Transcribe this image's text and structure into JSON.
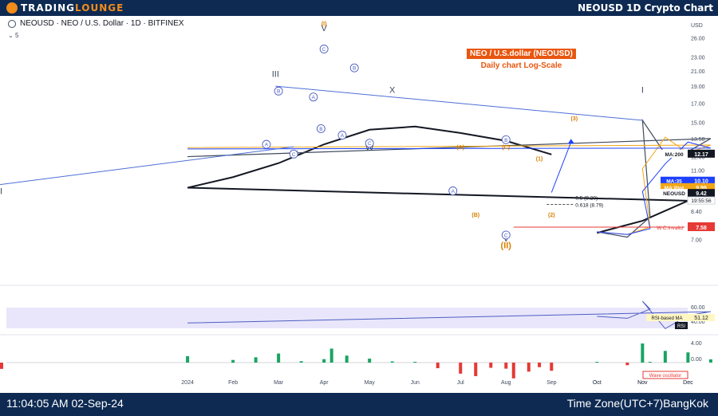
{
  "brand": {
    "name_a": "TRADING",
    "name_b": "LOUNGE"
  },
  "headline": "NEOUSD 1D Crypto Chart",
  "symbol_line": "NEOUSD · NEO / U.S. Dollar · 1D · BITFINEX",
  "indicator_count": "5",
  "footer": {
    "clock": "11:04:05 AM 02-Sep-24",
    "timezone": "Time Zone(UTC+7)BangKok"
  },
  "chart_data": {
    "type": "line",
    "title": "NEO / U.S.dollar (NEOUSD)",
    "subtitle": "Daily chart  Log-Scale",
    "y_unit": "USD",
    "y_scale": "log",
    "y_ticks": [
      26.0,
      23.0,
      21.0,
      19.0,
      17.0,
      15.0,
      13.5,
      12.0,
      11.0,
      8.4,
      7.0
    ],
    "x_ticks": [
      "Oct",
      "Nov",
      "Dec",
      "2024",
      "Feb",
      "Mar",
      "Apr",
      "May",
      "Jun",
      "Jul",
      "Aug",
      "Sep",
      "Oct",
      "Nov",
      "Dec"
    ],
    "price_path": [
      {
        "x": "Oct",
        "y": 7.35
      },
      {
        "x": "Oct-20",
        "y": 7.1
      },
      {
        "x": "Nov-05",
        "y": 8.1
      },
      {
        "x": "Nov",
        "y": 15.2
      },
      {
        "x": "Nov-15",
        "y": 12.2
      },
      {
        "x": "Dec",
        "y": 12.4
      },
      {
        "x": "Dec-15",
        "y": 13.5
      },
      {
        "x": "2024",
        "y": 12.0
      },
      {
        "x": "Jan-15",
        "y": 10.0
      },
      {
        "x": "Feb",
        "y": 11.4
      },
      {
        "x": "Feb-15",
        "y": 13.0
      },
      {
        "x": "Mar",
        "y": 15.3
      },
      {
        "x": "Mar-15",
        "y": 12.8
      },
      {
        "x": "Apr",
        "y": 14.5
      },
      {
        "x": "Apr-05",
        "y": 20.5
      },
      {
        "x": "Apr-15",
        "y": 17.0
      },
      {
        "x": "May",
        "y": 16.2
      },
      {
        "x": "May-15",
        "y": 15.0
      },
      {
        "x": "Jun",
        "y": 14.6
      },
      {
        "x": "Jun-15",
        "y": 12.0
      },
      {
        "x": "Jul",
        "y": 9.9
      },
      {
        "x": "Jul-10",
        "y": 9.0
      },
      {
        "x": "Jul-20",
        "y": 11.5
      },
      {
        "x": "Aug",
        "y": 11.0
      },
      {
        "x": "Aug-05",
        "y": 8.0
      },
      {
        "x": "Aug-15",
        "y": 9.6
      },
      {
        "x": "Aug-22",
        "y": 10.8
      },
      {
        "x": "Sep",
        "y": 9.42
      }
    ],
    "ma200_path": [
      {
        "x": "Oct",
        "y": 7.3
      },
      {
        "x": "Nov",
        "y": 7.9
      },
      {
        "x": "Dec",
        "y": 9.0
      },
      {
        "x": "2024",
        "y": 9.8
      },
      {
        "x": "Feb",
        "y": 10.5
      },
      {
        "x": "Mar",
        "y": 11.5
      },
      {
        "x": "Apr",
        "y": 13.0
      },
      {
        "x": "May",
        "y": 14.3
      },
      {
        "x": "Jun",
        "y": 14.6
      },
      {
        "x": "Jul",
        "y": 14.0
      },
      {
        "x": "Aug",
        "y": 13.3
      },
      {
        "x": "Sep",
        "y": 12.17
      }
    ],
    "price_labels": [
      {
        "label": "MA:200",
        "value": "12.17",
        "color": "#131722"
      },
      {
        "label": "MA:35",
        "value": "10.10",
        "color": "#1e40ff"
      },
      {
        "label": "MA:Plot",
        "value": "9.99",
        "color": "#f2a516"
      },
      {
        "label": "NEOUSD",
        "value": "9.42",
        "color": "#131722"
      }
    ],
    "countdown": "19:55:56",
    "invalidation": {
      "label": "W.C.Invalid",
      "value": "7.58"
    },
    "fib_levels": [
      {
        "label": "0.5 (9.20)",
        "value": 9.2
      },
      {
        "label": "0.618 (8.79)",
        "value": 8.79
      }
    ],
    "wave_labels": [
      {
        "text": "I",
        "x": "Nov",
        "y": 18.2,
        "color": "#3f4a5c",
        "style": "roman"
      },
      {
        "text": "II",
        "x": "Jan-25",
        "y": 9.4,
        "color": "#3f4a5c",
        "style": "roman"
      },
      {
        "text": "III",
        "x": "Feb-28",
        "y": 20.2,
        "color": "#3f4a5c",
        "style": "roman"
      },
      {
        "text": "IV",
        "x": "Mar-10",
        "y": 12.0,
        "color": "#3f4a5c",
        "style": "roman"
      },
      {
        "text": "V",
        "x": "Apr",
        "y": 27.2,
        "color": "#3f4a5c",
        "style": "roman"
      },
      {
        "text": "(I)",
        "x": "Apr",
        "y": 28.2,
        "color": "#d77f00",
        "style": "orange"
      },
      {
        "text": "(II)",
        "x": "Aug",
        "y": 6.6,
        "color": "#d77f00",
        "style": "orange"
      },
      {
        "text": "V",
        "x": "Aug",
        "y": 6.9,
        "color": "#3f4a5c",
        "style": "roman"
      },
      {
        "text": "X",
        "x": "May-15",
        "y": 18.2,
        "color": "#3f4a5c",
        "style": "roman"
      },
      {
        "text": "W",
        "x": "May",
        "y": 12.5,
        "color": "#3f4a5c",
        "style": "roman"
      },
      {
        "text": "A",
        "x": "Feb-22",
        "y": 13.0,
        "color": "#4d5ec1",
        "style": "circle"
      },
      {
        "text": "B",
        "x": "Mar",
        "y": 18.4,
        "color": "#4d5ec1",
        "style": "circle"
      },
      {
        "text": "C",
        "x": "Mar-10",
        "y": 12.2,
        "color": "#4d5ec1",
        "style": "circle"
      },
      {
        "text": "A",
        "x": "Mar-23",
        "y": 17.7,
        "color": "#4d5ec1",
        "style": "circle"
      },
      {
        "text": "B",
        "x": "Mar-28",
        "y": 14.4,
        "color": "#4d5ec1",
        "style": "circle"
      },
      {
        "text": "C",
        "x": "Apr",
        "y": 24.2,
        "color": "#4d5ec1",
        "style": "circle"
      },
      {
        "text": "A",
        "x": "Apr-12",
        "y": 13.8,
        "color": "#4d5ec1",
        "style": "circle"
      },
      {
        "text": "B",
        "x": "Apr-20",
        "y": 21.4,
        "color": "#4d5ec1",
        "style": "circle"
      },
      {
        "text": "C",
        "x": "May",
        "y": 13.1,
        "color": "#4d5ec1",
        "style": "circle"
      },
      {
        "text": "A",
        "x": "Jun-25",
        "y": 9.6,
        "color": "#4d5ec1",
        "style": "circle"
      },
      {
        "text": "B",
        "x": "Aug",
        "y": 13.4,
        "color": "#4d5ec1",
        "style": "circle"
      },
      {
        "text": "C",
        "x": "Aug",
        "y": 7.2,
        "color": "#4d5ec1",
        "style": "circle"
      },
      {
        "text": "(A)",
        "x": "Jul",
        "y": 12.6,
        "color": "#d77f00",
        "style": "orange"
      },
      {
        "text": "(B)",
        "x": "Jul-10",
        "y": 8.1,
        "color": "#d77f00",
        "style": "orange"
      },
      {
        "text": "(C)",
        "x": "Aug",
        "y": 12.6,
        "color": "#d77f00",
        "style": "orange"
      },
      {
        "text": "(1)",
        "x": "Aug-22",
        "y": 11.7,
        "color": "#d77f00",
        "style": "orange"
      },
      {
        "text": "(2)",
        "x": "Sep",
        "y": 8.1,
        "color": "#d77f00",
        "style": "orange"
      },
      {
        "text": "(3)",
        "x": "Sep-15",
        "y": 15.2,
        "color": "#d77f00",
        "style": "orange"
      }
    ],
    "rsi": {
      "ticks": [
        "60.00",
        "40.00"
      ],
      "ma_label": "RSI-based MA",
      "ma_value": "51.12",
      "tag": "RSI"
    },
    "oscillator": {
      "ticks": [
        "4.00",
        "0.00"
      ],
      "label": "Wave oscillator"
    },
    "colors": {
      "ma200": "#131722",
      "ma35": "#1e40ff",
      "maplot": "#f2a516",
      "price": "#3f4a5c",
      "wave": "#4d5ec1",
      "accent": "#e8560f",
      "bull": "#19a463",
      "bear": "#e53935"
    }
  }
}
